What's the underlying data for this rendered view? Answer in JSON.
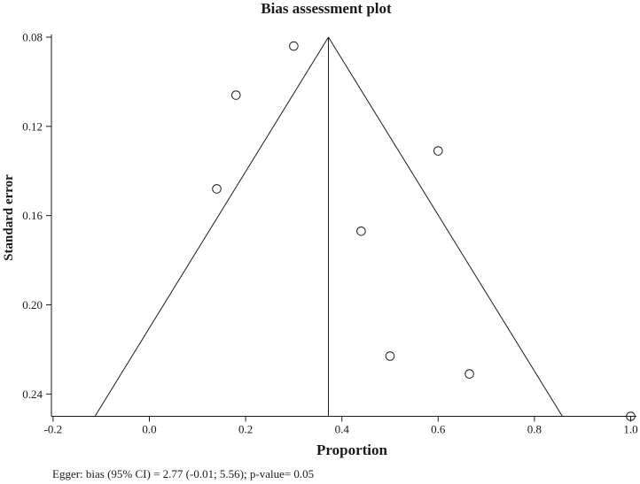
{
  "figure": {
    "title": "Bias assessment plot",
    "caption": "Egger: bias (95% CI) = 2.77 (-0.01; 5.56); p-value= 0.05"
  },
  "chart_data": {
    "type": "scatter",
    "subtype": "funnel-plot",
    "title": "Bias assessment plot",
    "xlabel": "Proportion",
    "ylabel": "Standard error",
    "annotation": "Egger: bias (95% CI) = 2.77 (-0.01; 5.56); p-value= 0.05",
    "xlim": [
      -0.2,
      1.0
    ],
    "ylim": [
      0.08,
      0.25
    ],
    "y_axis_inverted": true,
    "grid": false,
    "legend": null,
    "x_ticks": [
      -0.2,
      0.0,
      0.2,
      0.4,
      0.6,
      0.8,
      1.0
    ],
    "x_tick_labels": [
      "-0.2",
      "0.0",
      "0.2",
      "0.4",
      "0.6",
      "0.8",
      "1.0"
    ],
    "y_ticks": [
      0.08,
      0.12,
      0.16,
      0.2,
      0.24
    ],
    "y_tick_labels": [
      "0.08",
      "0.12",
      "0.16",
      "0.20",
      "0.24"
    ],
    "points": [
      {
        "x": 0.3,
        "se": 0.084
      },
      {
        "x": 0.18,
        "se": 0.106
      },
      {
        "x": 0.14,
        "se": 0.148
      },
      {
        "x": 0.6,
        "se": 0.131
      },
      {
        "x": 0.44,
        "se": 0.167
      },
      {
        "x": 0.5,
        "se": 0.223
      },
      {
        "x": 0.665,
        "se": 0.231
      },
      {
        "x": 1.0,
        "se": 0.25
      }
    ],
    "funnel": {
      "apex": {
        "x": 0.372,
        "se": 0.08
      },
      "base_left_x": -0.113,
      "base_right_x": 0.858,
      "base_se": 0.25,
      "center_line_x": 0.372
    }
  },
  "colors": {
    "ink": "#1a1a1a",
    "background": "#ffffff"
  }
}
